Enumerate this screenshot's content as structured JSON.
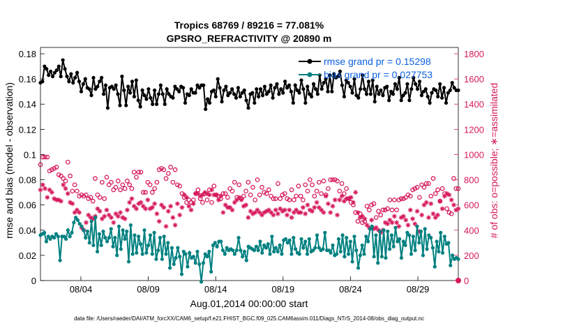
{
  "chart_data": {
    "type": "line",
    "title": "Tropics 68769 / 89216 = 77.081%",
    "subtitle": "GPSRO_REFRACTIVITY @ 20890 m",
    "xlabel": "Aug.01,2014 00:00:00 start",
    "ylabel": "rmse and bias (model - observation)",
    "y2label": "# of obs: o=possible; ∗=assimilated",
    "footer": "data file: /Users/raeder/DAI/ATM_forcXX/CAM6_setup/f.e21.FHIST_BGC.f09_025.CAM6assim.011/Diags_NTrS_2014-08/obs_diag_output.nc",
    "x_ticks": [
      {
        "day": 4,
        "label": "08/04"
      },
      {
        "day": 9,
        "label": "08/09"
      },
      {
        "day": 14,
        "label": "08/14"
      },
      {
        "day": 19,
        "label": "08/19"
      },
      {
        "day": 24,
        "label": "08/24"
      },
      {
        "day": 29,
        "label": "08/29"
      }
    ],
    "y_ticks": [
      "0",
      "0.02",
      "0.04",
      "0.06",
      "0.08",
      "0.1",
      "0.12",
      "0.14",
      "0.16",
      "0.18"
    ],
    "y2_ticks": [
      "0",
      "200",
      "400",
      "600",
      "800",
      "1000",
      "1200",
      "1400",
      "1600",
      "1800"
    ],
    "xlim": [
      1,
      32
    ],
    "ylim": [
      0,
      0.185
    ],
    "y2lim": [
      0,
      1850
    ],
    "colors": {
      "rmse": "#000000",
      "bias": "#008080",
      "obs": "#d6195e",
      "legend_text": "#0b5fe0"
    },
    "series": [
      {
        "name": "rmse grand pr = 0.15298",
        "key": "rmse",
        "values": [
          0.157,
          0.158,
          0.17,
          0.168,
          0.163,
          0.166,
          0.162,
          0.165,
          0.167,
          0.17,
          0.162,
          0.175,
          0.168,
          0.162,
          0.158,
          0.164,
          0.157,
          0.161,
          0.165,
          0.158,
          0.15,
          0.156,
          0.16,
          0.153,
          0.152,
          0.147,
          0.161,
          0.152,
          0.154,
          0.158,
          0.161,
          0.148,
          0.155,
          0.137,
          0.153,
          0.154,
          0.152,
          0.155,
          0.148,
          0.139,
          0.162,
          0.151,
          0.139,
          0.154,
          0.149,
          0.158,
          0.146,
          0.159,
          0.143,
          0.138,
          0.151,
          0.147,
          0.144,
          0.152,
          0.145,
          0.14,
          0.151,
          0.14,
          0.148,
          0.155,
          0.148,
          0.14,
          0.152,
          0.148,
          0.146,
          0.145,
          0.154,
          0.152,
          0.15,
          0.154,
          0.153,
          0.141,
          0.148,
          0.147,
          0.152,
          0.149,
          0.149,
          0.155,
          0.153,
          0.155,
          0.155,
          0.136,
          0.144,
          0.141,
          0.15,
          0.151,
          0.146,
          0.16,
          0.153,
          0.142,
          0.151,
          0.154,
          0.147,
          0.149,
          0.152,
          0.148,
          0.145,
          0.153,
          0.146,
          0.149,
          0.151,
          0.143,
          0.137,
          0.148,
          0.149,
          0.141,
          0.152,
          0.146,
          0.152,
          0.147,
          0.154,
          0.148,
          0.15,
          0.155,
          0.145,
          0.153,
          0.156,
          0.148,
          0.152,
          0.149,
          0.158,
          0.153,
          0.155,
          0.15,
          0.141,
          0.155,
          0.151,
          0.149,
          0.159,
          0.152,
          0.141,
          0.154,
          0.148,
          0.146,
          0.156,
          0.152,
          0.148,
          0.163,
          0.152,
          0.157,
          0.16,
          0.15,
          0.163,
          0.15,
          0.164,
          0.161,
          0.162,
          0.166,
          0.155,
          0.146,
          0.159,
          0.157,
          0.154,
          0.149,
          0.16,
          0.147,
          0.145,
          0.152,
          0.163,
          0.152,
          0.148,
          0.158,
          0.148,
          0.159,
          0.142,
          0.154,
          0.148,
          0.151,
          0.147,
          0.153,
          0.154,
          0.143,
          0.15,
          0.148,
          0.156,
          0.152,
          0.161,
          0.143,
          0.147,
          0.149,
          0.156,
          0.143,
          0.152,
          0.161,
          0.156,
          0.152,
          0.158,
          0.147,
          0.15,
          0.152,
          0.146,
          0.141,
          0.149,
          0.152,
          0.151,
          0.146,
          0.156,
          0.145,
          0.153,
          0.141,
          0.149,
          0.151,
          0.157,
          0.153,
          0.151,
          0.151
        ]
      },
      {
        "name": "bias grand pr = 0.027753",
        "key": "bias",
        "values": [
          0.036,
          0.037,
          0.038,
          0.031,
          0.035,
          0.033,
          0.035,
          0.034,
          0.037,
          0.035,
          0.016,
          0.035,
          0.035,
          0.033,
          0.04,
          0.035,
          0.038,
          0.046,
          0.05,
          0.048,
          0.045,
          0.043,
          0.04,
          0.034,
          0.039,
          0.03,
          0.047,
          0.028,
          0.05,
          0.023,
          0.037,
          0.028,
          0.039,
          0.034,
          0.031,
          0.034,
          0.041,
          0.027,
          0.034,
          0.02,
          0.043,
          0.025,
          0.04,
          0.033,
          0.039,
          0.015,
          0.044,
          0.021,
          0.036,
          0.022,
          0.035,
          0.029,
          0.021,
          0.04,
          0.022,
          0.028,
          0.036,
          0.021,
          0.038,
          0.017,
          0.024,
          0.034,
          0.017,
          0.035,
          0.021,
          0.03,
          0.01,
          0.026,
          0.013,
          0.018,
          0.026,
          0.019,
          0.005,
          0.023,
          0.021,
          0.011,
          0.022,
          0.018,
          0.019,
          0.014,
          0.023,
          0.013,
          -0.001,
          0.014,
          0.021,
          0.019,
          0.023,
          0.007,
          0.028,
          0.03,
          0.027,
          0.031,
          0.031,
          0.024,
          0.021,
          0.026,
          0.024,
          0.025,
          0.024,
          0.021,
          0.024,
          0.034,
          0.024,
          0.019,
          0.023,
          0.016,
          0.027,
          0.026,
          0.025,
          0.024,
          0.027,
          0.024,
          0.031,
          0.022,
          0.028,
          0.026,
          0.029,
          0.021,
          0.035,
          0.023,
          0.026,
          0.023,
          0.028,
          0.021,
          0.032,
          0.033,
          0.03,
          0.032,
          0.021,
          0.034,
          0.025,
          0.022,
          0.021,
          0.033,
          0.026,
          0.031,
          0.021,
          0.033,
          0.023,
          0.024,
          0.026,
          0.036,
          0.026,
          0.024,
          0.025,
          0.038,
          0.024,
          0.024,
          0.022,
          0.028,
          0.02,
          0.021,
          0.033,
          0.023,
          0.036,
          0.019,
          0.034,
          0.021,
          0.031,
          0.015,
          0.035,
          0.024,
          0.01,
          0.02,
          0.028,
          0.021,
          0.035,
          0.031,
          0.041,
          0.043,
          0.019,
          0.036,
          0.014,
          0.039,
          0.019,
          0.04,
          0.018,
          0.039,
          0.025,
          0.036,
          0.027,
          0.042,
          0.031,
          0.033,
          0.018,
          0.031,
          0.028,
          0.038,
          0.036,
          0.021,
          0.035,
          0.024,
          0.043,
          0.03,
          0.039,
          0.02,
          0.041,
          0.025,
          0.036,
          0.034,
          0.026,
          0.011,
          0.031,
          0.023,
          0.038,
          0.022,
          0.035,
          0.029,
          0.03,
          0.012,
          0.02,
          0.017,
          0.018,
          0.017
        ]
      },
      {
        "name": "possible",
        "key": "possible",
        "values": [
          920,
          980,
          980,
          980,
          870,
          880,
          890,
          900,
          840,
          830,
          810,
          790,
          940,
          830,
          710,
          760,
          710,
          670,
          680,
          670,
          680,
          650,
          660,
          630,
          810,
          680,
          660,
          780,
          650,
          820,
          760,
          780,
          720,
          740,
          790,
          720,
          760,
          730,
          790,
          760,
          730,
          860,
          820,
          860,
          860,
          700,
          700,
          780,
          760,
          700,
          730,
          780,
          880,
          890,
          880,
          810,
          850,
          900,
          780,
          880,
          760,
          750,
          690,
          660,
          620,
          640,
          620,
          640,
          690,
          720,
          650,
          620,
          690,
          640,
          720,
          620,
          750,
          680,
          670,
          650,
          690,
          690,
          660,
          730,
          710,
          780,
          660,
          760,
          650,
          670,
          710,
          780,
          680,
          740,
          640,
          800,
          680,
          740,
          700,
          690,
          720,
          670,
          650,
          650,
          770,
          650,
          680,
          690,
          650,
          640,
          720,
          640,
          670,
          750,
          670,
          640,
          760,
          710,
          800,
          760,
          670,
          710,
          780,
          690,
          790,
          680,
          730,
          800,
          800,
          800,
          790,
          710,
          770,
          690,
          730,
          650,
          620,
          600,
          540,
          470,
          530,
          460,
          470,
          590,
          560,
          600,
          610,
          500,
          550,
          520,
          560,
          560,
          570,
          640,
          560,
          640,
          560,
          640,
          650,
          650,
          660,
          680,
          670,
          720,
          730,
          740,
          660,
          760,
          740,
          770,
          770,
          670,
          810,
          690,
          720,
          630,
          730,
          690,
          570,
          540,
          530,
          810,
          730,
          730
        ]
      },
      {
        "name": "assimilated",
        "key": "assimilated",
        "values": [
          720,
          760,
          730,
          660,
          720,
          700,
          650,
          640,
          640,
          630,
          760,
          730,
          690,
          620,
          610,
          540,
          560,
          540,
          420,
          400,
          460,
          520,
          500,
          490,
          510,
          570,
          550,
          490,
          510,
          560,
          520,
          500,
          460,
          530,
          510,
          540,
          500,
          490,
          560,
          620,
          650,
          590,
          570,
          610,
          620,
          590,
          570,
          640,
          570,
          580,
          610,
          530,
          470,
          600,
          580,
          430,
          550,
          590,
          500,
          440,
          610,
          520,
          580,
          680,
          660,
          590,
          560,
          610,
          690,
          690,
          670,
          680,
          700,
          690,
          680,
          720,
          680,
          680,
          640,
          670,
          540,
          600,
          580,
          580,
          560,
          620,
          640,
          660,
          640,
          590,
          600,
          500,
          550,
          530,
          540,
          560,
          540,
          520,
          540,
          550,
          560,
          540,
          520,
          560,
          530,
          570,
          550,
          560,
          520,
          560,
          500,
          540,
          560,
          540,
          540,
          580,
          530,
          600,
          560,
          550,
          580,
          620,
          580,
          560,
          540,
          670,
          610,
          540,
          590,
          640,
          520,
          640,
          670,
          630,
          650,
          650,
          660,
          620,
          700,
          540,
          500,
          510,
          490,
          440,
          420,
          480,
          410,
          420,
          400,
          380,
          400,
          460,
          450,
          480,
          460,
          510,
          460,
          430,
          500,
          510,
          480,
          440,
          560,
          490,
          450,
          550,
          390,
          520,
          600,
          620,
          500,
          610,
          530,
          500,
          520,
          630,
          570,
          670,
          690,
          680,
          640,
          600,
          560,
          570
        ]
      }
    ],
    "legend": [
      "rmse grand pr = 0.15298",
      "bias grand pr = 0.027753"
    ],
    "legend_position": "top-right",
    "grid": false
  }
}
